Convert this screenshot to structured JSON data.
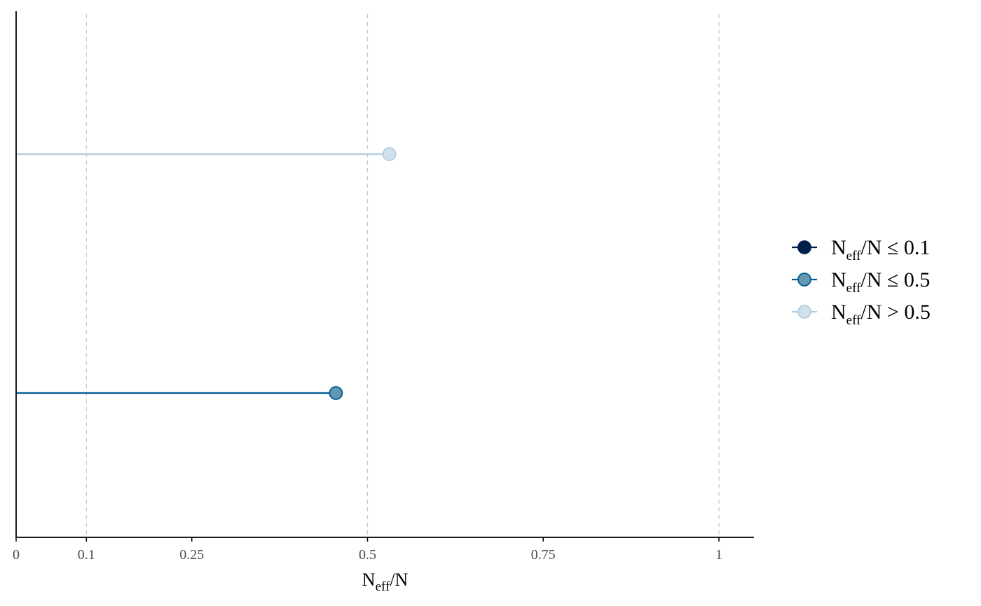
{
  "chart_data": {
    "type": "lollipop",
    "xlabel": {
      "main": "N",
      "sub": "eff",
      "rest": "/N"
    },
    "xlim": [
      0,
      1.05
    ],
    "x_ticks": [
      0,
      0.1,
      0.25,
      0.5,
      0.75,
      1
    ],
    "x_tick_labels": [
      "0",
      "0.1",
      "0.25",
      "0.5",
      "0.75",
      "1"
    ],
    "reference_lines": [
      0.1,
      0.5,
      1
    ],
    "grid": false,
    "legend_position": "right",
    "points": [
      {
        "row": 1,
        "value": 0.455,
        "category": "mid"
      },
      {
        "row": 2,
        "value": 0.531,
        "category": "high"
      }
    ],
    "n_rows": 2,
    "legend": [
      {
        "key": "low",
        "main": "N",
        "sub": "eff",
        "rest": "/N ≤ 0.1",
        "fill": "#011f4b",
        "stroke": "#011f4b",
        "line": "#011f4b"
      },
      {
        "key": "mid",
        "main": "N",
        "sub": "eff",
        "rest": "/N ≤ 0.5",
        "fill": "#6497b1",
        "stroke": "#005b96",
        "line": "#005b96"
      },
      {
        "key": "high",
        "main": "N",
        "sub": "eff",
        "rest": "/N > 0.5",
        "fill": "#d1e1ec",
        "stroke": "#b3cde0",
        "line": "#b3cde0"
      }
    ],
    "colors": {
      "axis": "#000000",
      "reference_line": "#c8c8c8"
    }
  }
}
